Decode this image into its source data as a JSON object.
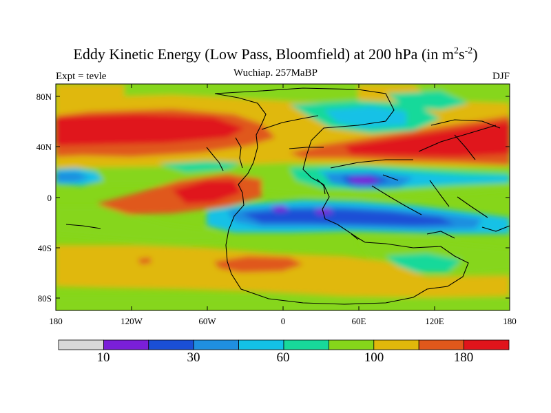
{
  "title_main": "Eddy Kinetic Energy (Low Pass, Bloomfield) at 200 hPa (in m",
  "title_sup1": "2",
  "title_s": "s",
  "title_sup2": "-2",
  "title_close": ")",
  "subtitle": "Wuchiap. 257MaBP",
  "left_string": "Expt = tevle",
  "right_string": "DJF",
  "lat_labels": [
    "80N",
    "40N",
    "0",
    "40S",
    "80S"
  ],
  "lon_labels": [
    "180",
    "120W",
    "60W",
    "0",
    "60E",
    "120E",
    "180"
  ],
  "colorbar": {
    "colors": [
      "#d9d9d9",
      "#7a1fd9",
      "#1a4fd6",
      "#1f8fe0",
      "#13c1e6",
      "#18d99a",
      "#86d61a",
      "#e0b80b",
      "#e0581b",
      "#e0141b"
    ],
    "labels": [
      "10",
      "30",
      "60",
      "100",
      "180"
    ]
  }
}
